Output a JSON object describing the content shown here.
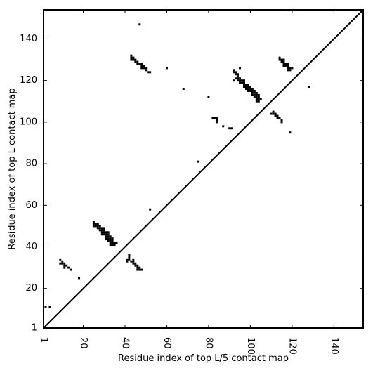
{
  "chart_data": {
    "type": "scatter",
    "title": "",
    "xlabel": "Residue index of top L/5 contact map",
    "ylabel": "Residue index of top L contact map",
    "xlim": [
      1,
      154
    ],
    "ylim": [
      1,
      154
    ],
    "xticks": [
      1,
      20,
      40,
      60,
      80,
      100,
      120,
      140
    ],
    "yticks": [
      1,
      20,
      40,
      60,
      80,
      100,
      120,
      140
    ],
    "x_tick_rotation": "90deg clockwise",
    "grid": false,
    "legend": "none",
    "diagonal": true,
    "marker_color": "#000000",
    "series": [
      {
        "points": [
          [
            2,
            11
          ],
          [
            4,
            11
          ],
          [
            9,
            32
          ],
          [
            9,
            34
          ],
          [
            10,
            33
          ],
          [
            10,
            32
          ],
          [
            11,
            31
          ],
          [
            11,
            30
          ],
          [
            11,
            32
          ],
          [
            12,
            31
          ],
          [
            13,
            30
          ],
          [
            14,
            29
          ],
          [
            18,
            25
          ],
          [
            25,
            52
          ],
          [
            25,
            51
          ],
          [
            25,
            50
          ],
          [
            26,
            51
          ],
          [
            26,
            50
          ],
          [
            27,
            51
          ],
          [
            27,
            50
          ],
          [
            27,
            49
          ],
          [
            28,
            50
          ],
          [
            28,
            49
          ],
          [
            28,
            48
          ],
          [
            29,
            49
          ],
          [
            29,
            48
          ],
          [
            29,
            47
          ],
          [
            29,
            46
          ],
          [
            30,
            49
          ],
          [
            30,
            48
          ],
          [
            30,
            47
          ],
          [
            30,
            46
          ],
          [
            31,
            47
          ],
          [
            31,
            46
          ],
          [
            31,
            45
          ],
          [
            31,
            44
          ],
          [
            32,
            47
          ],
          [
            32,
            46
          ],
          [
            32,
            45
          ],
          [
            32,
            44
          ],
          [
            32,
            43
          ],
          [
            33,
            45
          ],
          [
            33,
            44
          ],
          [
            33,
            43
          ],
          [
            33,
            42
          ],
          [
            33,
            41
          ],
          [
            34,
            44
          ],
          [
            34,
            43
          ],
          [
            34,
            42
          ],
          [
            34,
            41
          ],
          [
            35,
            42
          ],
          [
            35,
            41
          ],
          [
            36,
            42
          ],
          [
            41,
            34
          ],
          [
            41,
            33
          ],
          [
            42,
            36
          ],
          [
            42,
            35
          ],
          [
            42,
            34
          ],
          [
            43,
            33
          ],
          [
            44,
            34
          ],
          [
            44,
            33
          ],
          [
            44,
            32
          ],
          [
            45,
            32
          ],
          [
            45,
            31
          ],
          [
            46,
            31
          ],
          [
            46,
            30
          ],
          [
            46,
            29
          ],
          [
            47,
            30
          ],
          [
            47,
            29
          ],
          [
            48,
            29
          ],
          [
            52,
            58
          ],
          [
            75,
            81
          ],
          [
            43,
            132
          ],
          [
            43,
            131
          ],
          [
            43,
            130
          ],
          [
            44,
            131
          ],
          [
            44,
            130
          ],
          [
            45,
            130
          ],
          [
            45,
            129
          ],
          [
            46,
            129
          ],
          [
            46,
            128
          ],
          [
            47,
            128
          ],
          [
            48,
            128
          ],
          [
            48,
            127
          ],
          [
            48,
            126
          ],
          [
            49,
            127
          ],
          [
            49,
            126
          ],
          [
            50,
            126
          ],
          [
            50,
            125
          ],
          [
            51,
            124
          ],
          [
            52,
            124
          ],
          [
            47,
            147
          ],
          [
            60,
            126
          ],
          [
            68,
            116
          ],
          [
            80,
            112
          ],
          [
            82,
            102
          ],
          [
            83,
            102
          ],
          [
            84,
            102
          ],
          [
            84,
            101
          ],
          [
            84,
            100
          ],
          [
            87,
            98
          ],
          [
            90,
            97
          ],
          [
            91,
            97
          ],
          [
            92,
            125
          ],
          [
            92,
            124
          ],
          [
            92,
            120
          ],
          [
            93,
            124
          ],
          [
            93,
            123
          ],
          [
            93,
            121
          ],
          [
            94,
            123
          ],
          [
            94,
            122
          ],
          [
            94,
            121
          ],
          [
            94,
            120
          ],
          [
            95,
            126
          ],
          [
            95,
            121
          ],
          [
            95,
            120
          ],
          [
            95,
            119
          ],
          [
            96,
            120
          ],
          [
            96,
            119
          ],
          [
            97,
            120
          ],
          [
            97,
            119
          ],
          [
            97,
            118
          ],
          [
            97,
            117
          ],
          [
            98,
            118
          ],
          [
            98,
            117
          ],
          [
            98,
            116
          ],
          [
            99,
            118
          ],
          [
            99,
            117
          ],
          [
            99,
            116
          ],
          [
            99,
            115
          ],
          [
            100,
            117
          ],
          [
            100,
            116
          ],
          [
            100,
            115
          ],
          [
            101,
            116
          ],
          [
            101,
            115
          ],
          [
            101,
            114
          ],
          [
            101,
            113
          ],
          [
            102,
            115
          ],
          [
            102,
            114
          ],
          [
            102,
            113
          ],
          [
            102,
            112
          ],
          [
            103,
            114
          ],
          [
            103,
            113
          ],
          [
            103,
            112
          ],
          [
            103,
            111
          ],
          [
            103,
            110
          ],
          [
            104,
            113
          ],
          [
            104,
            112
          ],
          [
            104,
            111
          ],
          [
            104,
            110
          ],
          [
            105,
            111
          ],
          [
            110,
            104
          ],
          [
            111,
            105
          ],
          [
            111,
            104
          ],
          [
            112,
            104
          ],
          [
            112,
            103
          ],
          [
            113,
            103
          ],
          [
            113,
            102
          ],
          [
            114,
            102
          ],
          [
            115,
            101
          ],
          [
            115,
            100
          ],
          [
            114,
            131
          ],
          [
            114,
            130
          ],
          [
            115,
            130
          ],
          [
            115,
            129
          ],
          [
            116,
            130
          ],
          [
            116,
            129
          ],
          [
            116,
            128
          ],
          [
            116,
            127
          ],
          [
            117,
            128
          ],
          [
            117,
            127
          ],
          [
            118,
            128
          ],
          [
            118,
            127
          ],
          [
            118,
            126
          ],
          [
            118,
            125
          ],
          [
            119,
            126
          ],
          [
            119,
            125
          ],
          [
            120,
            126
          ],
          [
            119,
            95
          ],
          [
            128,
            117
          ]
        ]
      }
    ]
  }
}
